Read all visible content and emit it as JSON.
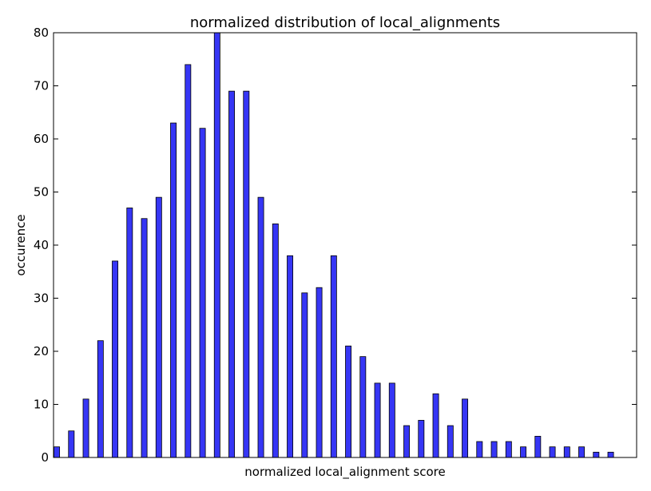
{
  "chart_data": {
    "type": "bar",
    "title": "normalized distribution of local_alignments",
    "xlabel": "normalized local_alignment score",
    "ylabel": "occurence",
    "ylim": [
      0,
      80
    ],
    "yticks": [
      0,
      10,
      20,
      30,
      40,
      50,
      60,
      70,
      80
    ],
    "grid": false,
    "legend": "none",
    "bar_color": "#3636f5",
    "bar_edge_color": "#000000",
    "values": [
      2,
      5,
      11,
      22,
      37,
      47,
      45,
      49,
      63,
      74,
      62,
      80,
      69,
      69,
      49,
      44,
      38,
      31,
      32,
      38,
      21,
      19,
      14,
      14,
      6,
      7,
      12,
      6,
      11,
      3,
      3,
      3,
      2,
      4,
      2,
      2,
      2,
      1,
      1,
      0
    ]
  }
}
